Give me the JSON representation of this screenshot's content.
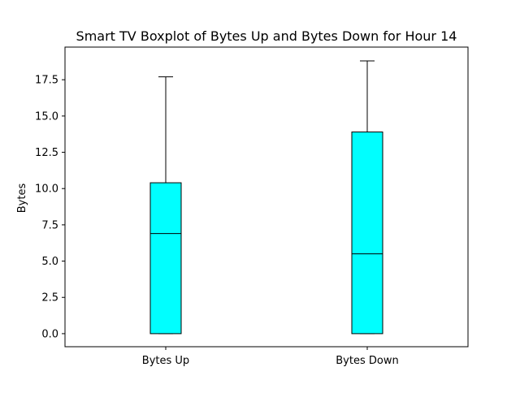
{
  "chart_data": {
    "type": "boxplot",
    "title": "Smart TV Boxplot of Bytes Up and Bytes Down for Hour 14",
    "xlabel": "",
    "ylabel": "Bytes",
    "categories": [
      "Bytes Up",
      "Bytes Down"
    ],
    "boxes": [
      {
        "category": "Bytes Up",
        "whisker_low": 0.0,
        "q1": 0.0,
        "median": 6.9,
        "q3": 10.4,
        "whisker_high": 17.7
      },
      {
        "category": "Bytes Down",
        "whisker_low": 0.0,
        "q1": 0.0,
        "median": 5.5,
        "q3": 13.9,
        "whisker_high": 18.8
      }
    ],
    "ylim": [
      -0.9,
      19.75
    ],
    "yticks": [
      0.0,
      2.5,
      5.0,
      7.5,
      10.0,
      12.5,
      15.0,
      17.5
    ],
    "ytick_labels": [
      "0.0",
      "2.5",
      "5.0",
      "7.5",
      "10.0",
      "12.5",
      "15.0",
      "17.5"
    ],
    "box_fill": "#00ffff",
    "line_color": "#000000",
    "grid": false,
    "legend": "none"
  }
}
